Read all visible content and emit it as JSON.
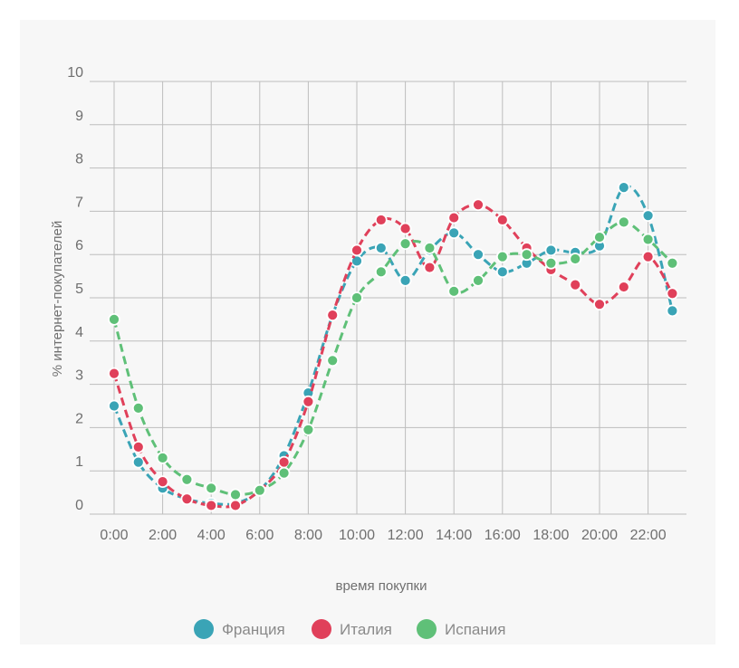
{
  "chart_data": {
    "type": "line",
    "title": "",
    "xlabel": "время покупки",
    "ylabel": "% интернет-покупателей",
    "ylim": [
      0,
      10
    ],
    "y_ticks": [
      "0",
      "1",
      "2",
      "3",
      "4",
      "5",
      "6",
      "7",
      "8",
      "9",
      "10"
    ],
    "x_tick_labels": [
      "0:00",
      "2:00",
      "4:00",
      "6:00",
      "8:00",
      "10:00",
      "12:00",
      "14:00",
      "16:00",
      "18:00",
      "20:00",
      "22:00"
    ],
    "x": [
      0,
      1,
      2,
      3,
      4,
      5,
      6,
      7,
      8,
      9,
      10,
      11,
      12,
      13,
      14,
      15,
      16,
      17,
      18,
      19,
      20,
      21,
      22,
      23
    ],
    "x_unit": "hour",
    "grid": true,
    "legend_position": "bottom-center",
    "series": [
      {
        "name": "Франция",
        "color": "#3aa4b6",
        "values": [
          2.5,
          1.2,
          0.6,
          0.35,
          0.25,
          0.25,
          0.55,
          1.35,
          2.8,
          4.6,
          5.85,
          6.15,
          5.4,
          6.1,
          6.5,
          6.0,
          5.6,
          5.8,
          6.1,
          6.05,
          6.2,
          7.55,
          6.9,
          4.7
        ]
      },
      {
        "name": "Италия",
        "color": "#e0405a",
        "values": [
          3.25,
          1.55,
          0.75,
          0.35,
          0.2,
          0.2,
          0.55,
          1.2,
          2.6,
          4.6,
          6.1,
          6.8,
          6.6,
          5.7,
          6.85,
          7.15,
          6.8,
          6.15,
          5.65,
          5.3,
          4.85,
          5.25,
          5.95,
          5.1
        ]
      },
      {
        "name": "Испания",
        "color": "#5fc078",
        "values": [
          4.5,
          2.45,
          1.3,
          0.8,
          0.6,
          0.45,
          0.55,
          0.95,
          1.95,
          3.55,
          5.0,
          5.6,
          6.25,
          6.15,
          5.15,
          5.4,
          5.95,
          6.0,
          5.8,
          5.9,
          6.4,
          6.75,
          6.35,
          5.8
        ]
      }
    ]
  }
}
